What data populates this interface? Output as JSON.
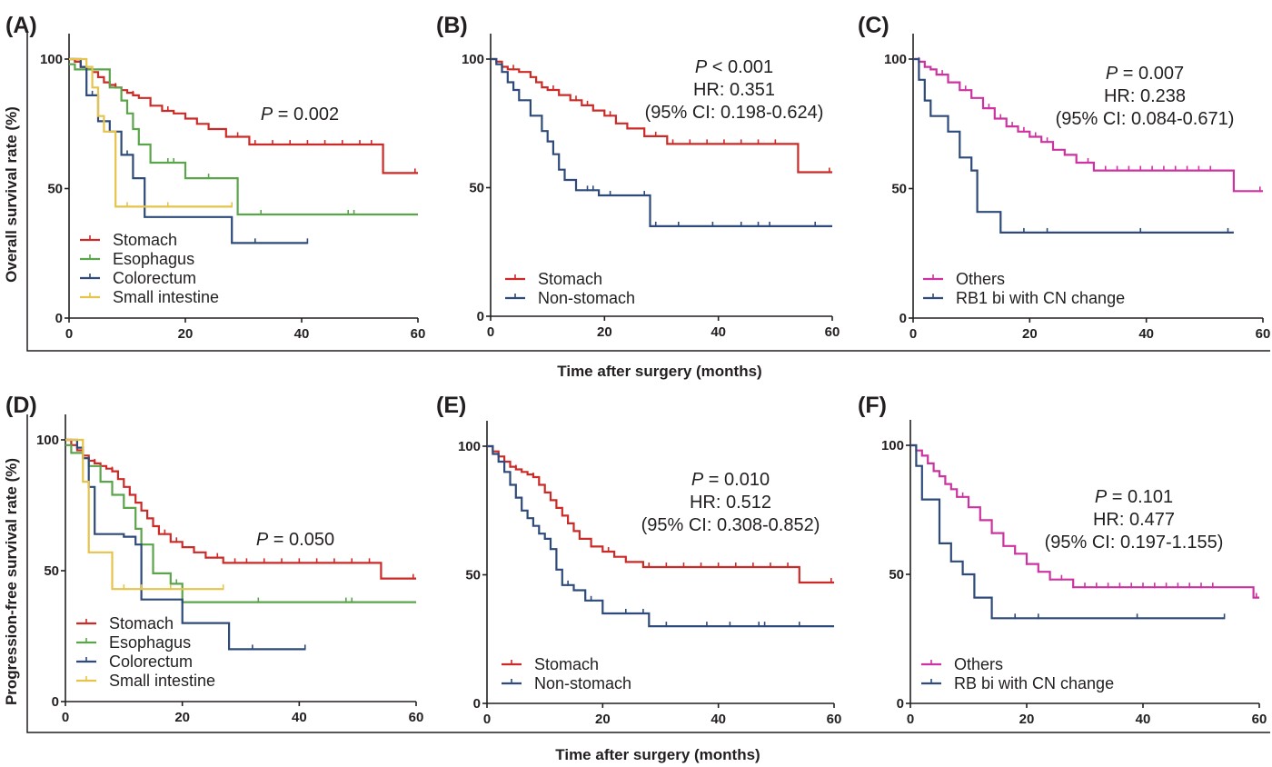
{
  "row_labels": {
    "top": {
      "ylabel": "Overall survival rate (%)",
      "xlabel": "Time after surgery (months)"
    },
    "bottom": {
      "ylabel": "Progression-free survival rate (%)",
      "xlabel": "Time after surgery (months)"
    }
  },
  "chart_data": [
    {
      "type": "line",
      "panel": "(A)",
      "xlim": [
        0,
        60
      ],
      "ylim": [
        0,
        100
      ],
      "xticks": [
        "0",
        "20",
        "40",
        "60"
      ],
      "yticks": [
        "0",
        "50",
        "100"
      ],
      "annotation": {
        "p_label": "P",
        "p_value": " = 0.002"
      },
      "series": [
        {
          "name": "Stomach",
          "color": "#cc2a27",
          "x": [
            0,
            1,
            2,
            3,
            4,
            5,
            6,
            7,
            8,
            9,
            10,
            11,
            12,
            14,
            16,
            18,
            20,
            22,
            24,
            27,
            31,
            54,
            60
          ],
          "y": [
            100,
            99,
            97,
            96,
            95,
            93,
            91,
            90,
            89,
            88,
            87,
            86,
            85,
            82,
            80,
            79,
            77,
            75,
            73,
            70,
            67,
            56,
            56
          ],
          "censored_x": [
            5,
            8,
            11,
            14,
            17,
            24,
            29,
            32,
            35,
            38,
            41,
            44,
            47,
            50,
            52,
            59.5
          ]
        },
        {
          "name": "Esophagus",
          "color": "#5aa54b",
          "x": [
            0,
            1,
            3,
            7,
            9,
            10,
            11,
            12,
            14,
            20,
            29,
            60
          ],
          "y": [
            98,
            96,
            96,
            89,
            84,
            79,
            73,
            67,
            60,
            54,
            40,
            40
          ],
          "censored_x": [
            17,
            18,
            24,
            33,
            48,
            49
          ]
        },
        {
          "name": "Colorectum",
          "color": "#2d4a7a",
          "x": [
            0,
            2,
            3,
            5,
            7,
            9,
            11,
            13,
            28,
            41
          ],
          "y": [
            100,
            97,
            86,
            76,
            72,
            63,
            54,
            39,
            29,
            29
          ],
          "censored_x": [
            4,
            10,
            32,
            41
          ]
        },
        {
          "name": "Small intestine",
          "color": "#e6c34a",
          "x": [
            0,
            3,
            4,
            5,
            6,
            8,
            28
          ],
          "y": [
            100,
            97,
            89,
            78,
            72,
            43,
            43
          ],
          "censored_x": [
            10,
            17,
            28
          ]
        }
      ]
    },
    {
      "type": "line",
      "panel": "(B)",
      "xlim": [
        0,
        60
      ],
      "ylim": [
        0,
        100
      ],
      "xticks": [
        "0",
        "20",
        "40",
        "60"
      ],
      "yticks": [
        "0",
        "50",
        "100"
      ],
      "annotation": {
        "p_label": "P",
        "p_value": " < 0.001",
        "hr": "HR: 0.351",
        "ci": "(95% CI: 0.198-0.624)"
      },
      "series": [
        {
          "name": "Stomach",
          "color": "#cc2a27",
          "x": [
            0,
            1,
            2,
            3,
            5,
            7,
            8,
            9,
            10,
            12,
            14,
            16,
            18,
            20,
            22,
            24,
            27,
            31,
            54,
            60
          ],
          "y": [
            100,
            99,
            97,
            96,
            95,
            93,
            91,
            89,
            88,
            86,
            84,
            82,
            80,
            78,
            75,
            73,
            70,
            67,
            56,
            56
          ],
          "censored_x": [
            4,
            7,
            11,
            15,
            17,
            21,
            24,
            29,
            32,
            35,
            38,
            41,
            44,
            47,
            50,
            59.5
          ]
        },
        {
          "name": "Non-stomach",
          "color": "#2d4a7a",
          "x": [
            0,
            1,
            2,
            3,
            4,
            5,
            7,
            9,
            10,
            11,
            12,
            13,
            15,
            19,
            28,
            60
          ],
          "y": [
            100,
            98,
            95,
            91,
            88,
            84,
            78,
            72,
            68,
            63,
            57,
            53,
            49,
            47,
            35,
            35
          ],
          "censored_x": [
            17,
            18,
            21,
            27,
            29,
            33,
            39,
            44,
            47,
            49,
            57
          ]
        }
      ]
    },
    {
      "type": "line",
      "panel": "(C)",
      "xlim": [
        0,
        60
      ],
      "ylim": [
        0,
        100
      ],
      "xticks": [
        "0",
        "20",
        "40",
        "60"
      ],
      "yticks": [
        "0",
        "50",
        "100"
      ],
      "annotation": {
        "p_label": "P",
        "p_value": " = 0.007",
        "hr": "HR: 0.238",
        "ci": "(95% CI: 0.084-0.671)"
      },
      "series": [
        {
          "name": "Others",
          "color": "#cc33a0",
          "x": [
            0,
            1,
            2,
            3,
            4,
            6,
            8,
            10,
            12,
            14,
            16,
            18,
            20,
            22,
            24,
            26,
            28,
            31,
            55,
            60
          ],
          "y": [
            100,
            99,
            97,
            96,
            94,
            91,
            88,
            85,
            81,
            77,
            74,
            72,
            70,
            68,
            65,
            63,
            60,
            57,
            49,
            49
          ],
          "censored_x": [
            1,
            5,
            9,
            13,
            15,
            17,
            19,
            21,
            23,
            26,
            28,
            30,
            33,
            35,
            37,
            39,
            41,
            43,
            45,
            47,
            49,
            51,
            59.5
          ]
        },
        {
          "name": "RB1 bi with CN change",
          "color": "#2d4a7a",
          "x": [
            0,
            1,
            2,
            3,
            6,
            8,
            10,
            11,
            15,
            55
          ],
          "y": [
            100,
            92,
            84,
            78,
            72,
            62,
            57,
            41,
            33,
            33
          ],
          "censored_x": [
            19,
            23,
            39,
            54
          ]
        }
      ]
    },
    {
      "type": "line",
      "panel": "(D)",
      "xlim": [
        0,
        60
      ],
      "ylim": [
        0,
        100
      ],
      "xticks": [
        "0",
        "20",
        "40",
        "60"
      ],
      "yticks": [
        "0",
        "50",
        "100"
      ],
      "annotation": {
        "p_label": "P",
        "p_value": " = 0.050"
      },
      "series": [
        {
          "name": "Stomach",
          "color": "#cc2a27",
          "x": [
            0,
            1,
            2,
            3,
            4,
            5,
            6,
            7,
            8,
            9,
            10,
            11,
            12,
            13,
            14,
            15,
            16,
            18,
            20,
            22,
            24,
            27,
            54,
            60
          ],
          "y": [
            100,
            98,
            96,
            94,
            92,
            91,
            90,
            89,
            88,
            85,
            82,
            79,
            76,
            73,
            70,
            67,
            64,
            61,
            59,
            57,
            55,
            53,
            47,
            47
          ],
          "censored_x": [
            5,
            8,
            11,
            14,
            17,
            19,
            22,
            26,
            29,
            31,
            34,
            37,
            40,
            43,
            46,
            49,
            52,
            59.5
          ]
        },
        {
          "name": "Esophagus",
          "color": "#5aa54b",
          "x": [
            0,
            1,
            3,
            4,
            6,
            8,
            10,
            12,
            13,
            15,
            18,
            20,
            60
          ],
          "y": [
            98,
            95,
            93,
            90,
            84,
            79,
            74,
            66,
            60,
            49,
            45,
            38,
            38
          ],
          "censored_x": [
            13,
            19,
            20,
            33,
            48,
            49
          ]
        },
        {
          "name": "Colorectum",
          "color": "#2d4a7a",
          "x": [
            0,
            2,
            3,
            4,
            5,
            7,
            10,
            12,
            13,
            20,
            28,
            41
          ],
          "y": [
            100,
            97,
            93,
            82,
            64,
            64,
            63,
            60,
            39,
            30,
            20,
            20
          ],
          "censored_x": [
            32,
            41
          ]
        },
        {
          "name": "Small intestine",
          "color": "#e6c34a",
          "x": [
            0,
            3,
            4,
            6,
            8,
            27
          ],
          "y": [
            100,
            84,
            57,
            57,
            43,
            43
          ],
          "censored_x": [
            10,
            13,
            18,
            27
          ]
        }
      ]
    },
    {
      "type": "line",
      "panel": "(E)",
      "xlim": [
        0,
        60
      ],
      "ylim": [
        0,
        100
      ],
      "xticks": [
        "0",
        "20",
        "40",
        "60"
      ],
      "yticks": [
        "0",
        "50",
        "100"
      ],
      "annotation": {
        "p_label": "P",
        "p_value": " = 0.010",
        "hr": "HR: 0.512",
        "ci": "(95% CI: 0.308-0.852)"
      },
      "series": [
        {
          "name": "Stomach",
          "color": "#cc2a27",
          "x": [
            0,
            1,
            2,
            3,
            4,
            5,
            6,
            7,
            8,
            9,
            10,
            11,
            12,
            13,
            14,
            15,
            16,
            18,
            20,
            22,
            24,
            27,
            54,
            60
          ],
          "y": [
            100,
            98,
            96,
            94,
            92,
            91,
            90,
            89,
            88,
            85,
            82,
            79,
            76,
            73,
            70,
            67,
            64,
            61,
            59,
            57,
            55,
            53,
            47,
            47
          ],
          "censored_x": [
            5,
            8,
            11,
            15,
            18,
            21,
            24,
            28,
            31,
            34,
            37,
            40,
            43,
            46,
            49,
            52,
            59.5
          ]
        },
        {
          "name": "Non-stomach",
          "color": "#2d4a7a",
          "x": [
            0,
            1,
            2,
            3,
            4,
            5,
            6,
            7,
            8,
            9,
            10,
            11,
            12,
            13,
            15,
            17,
            20,
            28,
            60
          ],
          "y": [
            100,
            97,
            94,
            90,
            85,
            80,
            75,
            72,
            69,
            66,
            64,
            60,
            52,
            46,
            44,
            40,
            35,
            30,
            30
          ],
          "censored_x": [
            11,
            14,
            18,
            24,
            27,
            31,
            38,
            42,
            47,
            48,
            54
          ]
        }
      ]
    },
    {
      "type": "line",
      "panel": "(F)",
      "xlim": [
        0,
        60
      ],
      "ylim": [
        0,
        100
      ],
      "xticks": [
        "0",
        "20",
        "40",
        "60"
      ],
      "yticks": [
        "0",
        "50",
        "100"
      ],
      "annotation": {
        "p_label": "P",
        "p_value": " = 0.101",
        "hr": "HR: 0.477",
        "ci": "(95% CI: 0.197-1.155)"
      },
      "series": [
        {
          "name": "Others",
          "color": "#cc33a0",
          "x": [
            0,
            1,
            2,
            3,
            4,
            5,
            6,
            7,
            8,
            10,
            12,
            14,
            16,
            18,
            20,
            22,
            24,
            28,
            59,
            60
          ],
          "y": [
            100,
            98,
            96,
            93,
            90,
            88,
            85,
            83,
            80,
            76,
            71,
            66,
            61,
            58,
            54,
            51,
            48,
            45,
            41,
            41
          ],
          "censored_x": [
            1,
            4,
            7,
            9,
            12,
            14,
            16,
            18,
            20,
            22,
            24,
            26,
            28,
            30,
            32,
            34,
            36,
            38,
            40,
            42,
            44,
            46,
            48,
            50,
            52,
            59.5
          ]
        },
        {
          "name": "RB bi with CN change",
          "color": "#2d4a7a",
          "x": [
            0,
            1,
            2,
            5,
            7,
            9,
            11,
            14,
            54
          ],
          "y": [
            100,
            92,
            79,
            62,
            55,
            50,
            41,
            33,
            33
          ],
          "censored_x": [
            18,
            22,
            39,
            54
          ]
        }
      ]
    }
  ]
}
